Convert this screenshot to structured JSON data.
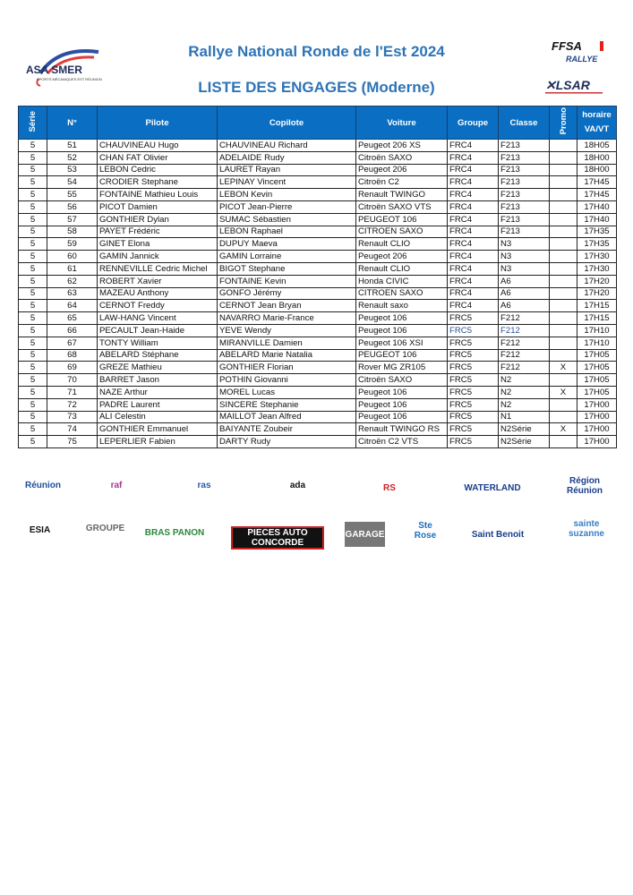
{
  "header": {
    "title": "Rallye National Ronde de l'Est 2024",
    "subtitle": "LISTE DES ENGAGES (Moderne)",
    "logo_left": {
      "name": "ASA SMER",
      "tagline": "SPORTS MÉCANIQUES EST RÉUNION"
    },
    "logo_right_top": {
      "name": "FFSA",
      "tagline": "RALLYE"
    },
    "logo_right_bottom": {
      "name": "LSAR"
    }
  },
  "table": {
    "columns": [
      "Série",
      "N°",
      "Pilote",
      "Copilote",
      "Voiture",
      "Groupe",
      "Classe",
      "Promo",
      "horaire VA/VT"
    ],
    "rows": [
      [
        "5",
        "51",
        "CHAUVINEAU Hugo",
        "CHAUVINEAU Richard",
        "Peugeot 206 XS",
        "FRC4",
        "F213",
        "",
        "18H05"
      ],
      [
        "5",
        "52",
        "CHAN FAT Olivier",
        "ADELAIDE Rudy",
        "Citroën SAXO",
        "FRC4",
        "F213",
        "",
        "18H00"
      ],
      [
        "5",
        "53",
        "LEBON Cedric",
        "LAURET Rayan",
        "Peugeot 206",
        "FRC4",
        "F213",
        "",
        "18H00"
      ],
      [
        "5",
        "54",
        "CRODIER Stephane",
        "LEPINAY Vincent",
        "Citroën C2",
        "FRC4",
        "F213",
        "",
        "17H45"
      ],
      [
        "5",
        "55",
        "FONTAINE Mathieu Louis",
        "LEBON Kevin",
        "Renault TWINGO",
        "FRC4",
        "F213",
        "",
        "17H45"
      ],
      [
        "5",
        "56",
        "PICOT Damien",
        "PICOT Jean-Pierre",
        "Citroën SAXO VTS",
        "FRC4",
        "F213",
        "",
        "17H40"
      ],
      [
        "5",
        "57",
        "GONTHIER Dylan",
        "SUMAC Sébastien",
        "PEUGEOT 106",
        "FRC4",
        "F213",
        "",
        "17H40"
      ],
      [
        "5",
        "58",
        "PAYET Frédéric",
        "LEBON Raphael",
        "CITROEN SAXO",
        "FRC4",
        "F213",
        "",
        "17H35"
      ],
      [
        "5",
        "59",
        "GINET Elona",
        "DUPUY Maeva",
        "Renault CLIO",
        "FRC4",
        "N3",
        "",
        "17H35"
      ],
      [
        "5",
        "60",
        "GAMIN Jannick",
        "GAMIN Lorraine",
        "Peugeot 206",
        "FRC4",
        "N3",
        "",
        "17H30"
      ],
      [
        "5",
        "61",
        "RENNEVILLE Cedric Michel",
        "BIGOT Stephane",
        "Renault CLIO",
        "FRC4",
        "N3",
        "",
        "17H30"
      ],
      [
        "5",
        "62",
        "ROBERT Xavier",
        "FONTAINE Kevin",
        "Honda CIVIC",
        "FRC4",
        "A6",
        "",
        "17H20"
      ],
      [
        "5",
        "63",
        "MAZEAU Anthony",
        "GONFO Jérémy",
        "CITROEN SAXO",
        "FRC4",
        "A6",
        "",
        "17H20"
      ],
      [
        "5",
        "64",
        "CERNOT Freddy",
        "CERNOT Jean Bryan",
        "Renault saxo",
        "FRC4",
        "A6",
        "",
        "17H15"
      ],
      [
        "5",
        "65",
        "LAW-HANG Vincent",
        "NAVARRO Marie-France",
        "Peugeot 106",
        "FRC5",
        "F212",
        "",
        "17H15"
      ],
      [
        "5",
        "66",
        "PECAULT Jean-Haide",
        "YEVE Wendy",
        "Peugeot 106",
        "FRC5",
        "F212",
        "",
        "17H10"
      ],
      [
        "5",
        "67",
        "TONTY William",
        "MIRANVILLE Damien",
        "Peugeot 106 XSI",
        "FRC5",
        "F212",
        "",
        "17H10"
      ],
      [
        "5",
        "68",
        "ABELARD Stéphane",
        "ABELARD Marie Natalia",
        "PEUGEOT 106",
        "FRC5",
        "F212",
        "",
        "17H05"
      ],
      [
        "5",
        "69",
        "GREZE Mathieu",
        "GONTHIER Florian",
        "Rover MG ZR105",
        "FRC5",
        "F212",
        "X",
        "17H05"
      ],
      [
        "5",
        "70",
        "BARRET Jason",
        "POTHIN Giovanni",
        "Citroën SAXO",
        "FRC5",
        "N2",
        "",
        "17H05"
      ],
      [
        "5",
        "71",
        "NAZE Arthur",
        "MOREL Lucas",
        "Peugeot 106",
        "FRC5",
        "N2",
        "X",
        "17H05"
      ],
      [
        "5",
        "72",
        "PADRE Laurent",
        "SINCERE Stephanie",
        "Peugeot 106",
        "FRC5",
        "N2",
        "",
        "17H00"
      ],
      [
        "5",
        "73",
        "ALI Celestin",
        "MAILLOT Jean Alfred",
        "Peugeot 106",
        "FRC5",
        "N1",
        "",
        "17H00"
      ],
      [
        "5",
        "74",
        "GONTHIER Emmanuel",
        "BAIYANTE Zoubeir",
        "Renault TWINGO RS",
        "FRC5",
        "N2Série",
        "X",
        "17H00"
      ],
      [
        "5",
        "75",
        "LEPERLIER Fabien",
        "DARTY Rudy",
        "Citroën C2 VTS",
        "FRC5",
        "N2Série",
        "",
        "17H00"
      ]
    ]
  },
  "sponsors": [
    "Réunion",
    "raf",
    "ras",
    "ada",
    "RS",
    "WATERLAND",
    "Région Réunion",
    "ESIA",
    "GROUPE",
    "BRAS PANON",
    "PIECES AUTO CONCORDE",
    "GARAGE",
    "Ste Rose",
    "Saint Benoit",
    "sainte suzanne"
  ],
  "colors": {
    "header_bg": "#0a6fc2",
    "title": "#2e74b5"
  }
}
